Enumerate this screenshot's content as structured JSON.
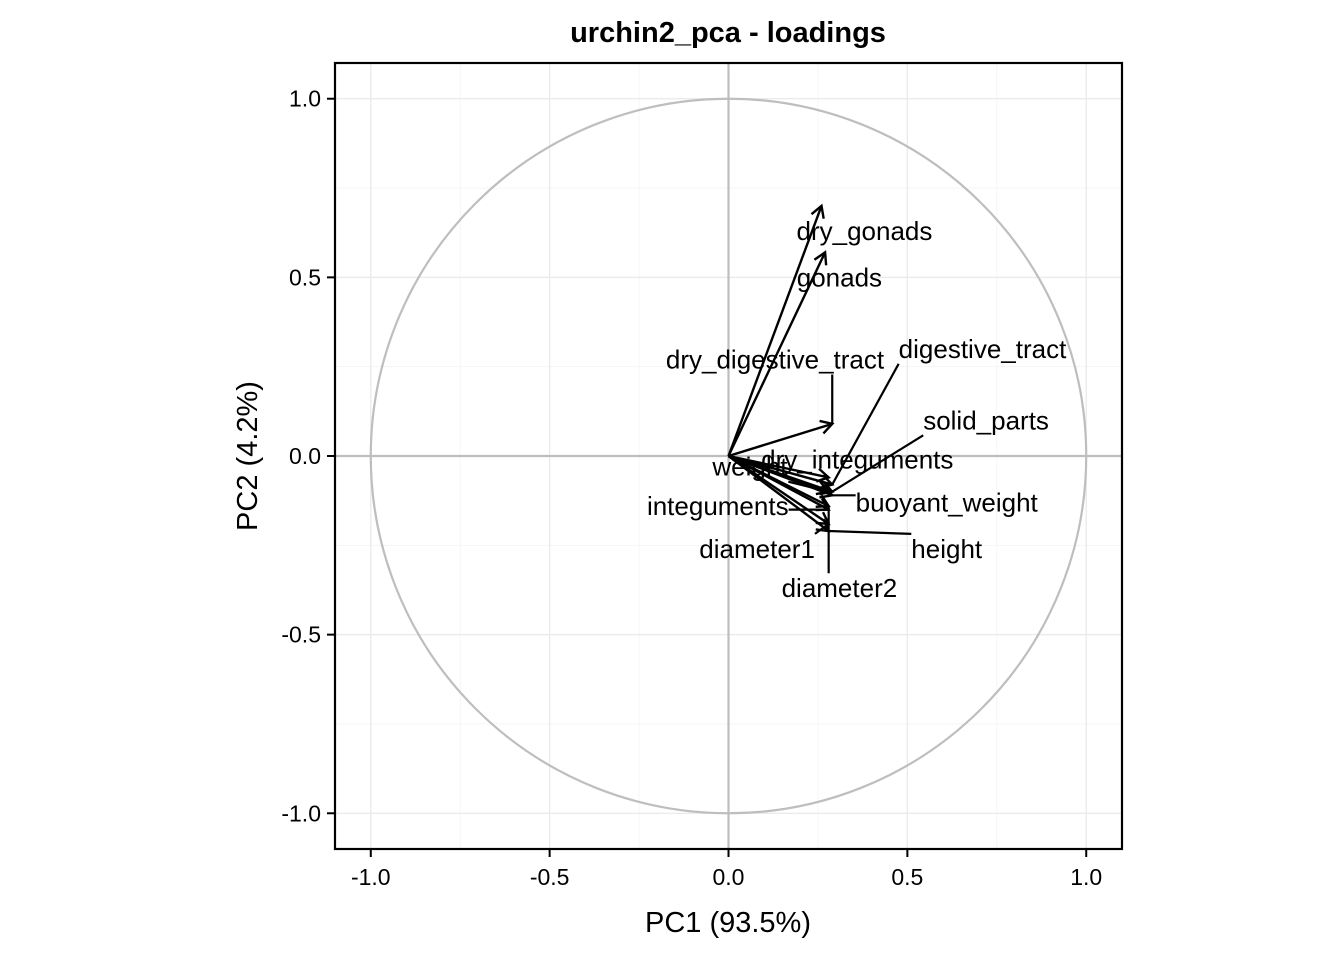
{
  "chart_data": {
    "type": "scatter",
    "subtype": "pca-loadings-biplot",
    "title": "urchin2_pca - loadings",
    "xlabel": "PC1 (93.5%)",
    "ylabel": "PC2 (4.2%)",
    "xlim": [
      -1.1,
      1.1
    ],
    "ylim": [
      -1.1,
      1.1
    ],
    "xticks": [
      -1.0,
      -0.5,
      0.0,
      0.5,
      1.0
    ],
    "yticks": [
      -1.0,
      -0.5,
      0.0,
      0.5,
      1.0
    ],
    "xtick_labels": [
      "-1.0",
      "-0.5",
      "0.0",
      "0.5",
      "1.0"
    ],
    "ytick_labels": [
      "-1.0",
      "-0.5",
      "0.0",
      "0.5",
      "1.0"
    ],
    "grid": true,
    "unit_circle": true,
    "loadings": [
      {
        "name": "dry_gonads",
        "x": 0.26,
        "y": 0.7,
        "label_x": 0.38,
        "label_y": 0.63
      },
      {
        "name": "gonads",
        "x": 0.27,
        "y": 0.57,
        "label_x": 0.31,
        "label_y": 0.5
      },
      {
        "name": "dry_digestive_tract",
        "x": 0.29,
        "y": 0.09,
        "label_x": 0.13,
        "label_y": 0.27
      },
      {
        "name": "digestive_tract",
        "x": 0.29,
        "y": -0.08,
        "label_x": 0.71,
        "label_y": 0.3
      },
      {
        "name": "solid_parts",
        "x": 0.29,
        "y": -0.1,
        "label_x": 0.72,
        "label_y": 0.1
      },
      {
        "name": "dry_integuments",
        "x": 0.28,
        "y": -0.06,
        "label_x": 0.36,
        "label_y": -0.01
      },
      {
        "name": "buoyant_weight",
        "x": 0.29,
        "y": -0.11,
        "label_x": 0.61,
        "label_y": -0.13
      },
      {
        "name": "weight",
        "x": 0.28,
        "y": -0.1,
        "label_x": 0.06,
        "label_y": -0.03
      },
      {
        "name": "integuments",
        "x": 0.28,
        "y": -0.15,
        "label_x": -0.03,
        "label_y": -0.14
      },
      {
        "name": "height",
        "x": 0.28,
        "y": -0.21,
        "label_x": 0.61,
        "label_y": -0.26
      },
      {
        "name": "diameter1",
        "x": 0.28,
        "y": -0.19,
        "label_x": 0.08,
        "label_y": -0.26
      },
      {
        "name": "diameter2",
        "x": 0.28,
        "y": -0.14,
        "label_x": 0.31,
        "label_y": -0.37
      }
    ]
  }
}
